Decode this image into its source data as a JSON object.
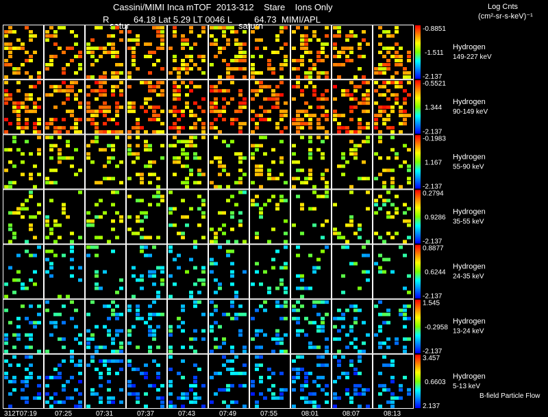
{
  "header": {
    "title": "Cassini/MIMI Inca mTOF  2013-312    Stare    Ions Only",
    "r_label": "R",
    "subtitle": "64.18 Lat 5.29 LT 0046 L         64.73  MIMI/APL",
    "saturn_tag_1": "satur",
    "saturn_tag_2": "saturn",
    "units_line1": "Log Cnts",
    "units_line2": "(cm²-sr-s-keV)⁻¹"
  },
  "footer": {
    "bfield_label": "B-field Particle Flow"
  },
  "chart_data": {
    "type": "heatmap",
    "x_tick_labels": [
      "312T07:19",
      "07:25",
      "07:31",
      "07:37",
      "07:43",
      "07:49",
      "07:55",
      "08:01",
      "08:07",
      "08:13"
    ],
    "colorbar_colors": [
      "#ff0000",
      "#ff7f00",
      "#ffff00",
      "#7fff00",
      "#00ffff",
      "#0080ff",
      "#0000ff"
    ],
    "rows": [
      {
        "species": "Hydrogen",
        "energy": "149-227 keV",
        "cb_top": "-0.8851",
        "cb_mid": "-1.511",
        "cb_bottom": "-2.137",
        "density": 0.34,
        "bias": 0.75
      },
      {
        "species": "Hydrogen",
        "energy": "90-149 keV",
        "cb_top": "-0.5521",
        "cb_mid": "1.344",
        "cb_bottom": "-2.137",
        "density": 0.42,
        "bias": 0.82
      },
      {
        "species": "Hydrogen",
        "energy": "55-90 keV",
        "cb_top": "-0.1983",
        "cb_mid": "1.167",
        "cb_bottom": "-2.137",
        "density": 0.22,
        "bias": 0.62
      },
      {
        "species": "Hydrogen",
        "energy": "35-55 keV",
        "cb_top": "0.2794",
        "cb_mid": "0.9286",
        "cb_bottom": "-2.137",
        "density": 0.17,
        "bias": 0.55
      },
      {
        "species": "Hydrogen",
        "energy": "24-35 keV",
        "cb_top": "0.8877",
        "cb_mid": "0.6244",
        "cb_bottom": "-2.137",
        "density": 0.15,
        "bias": 0.35
      },
      {
        "species": "Hydrogen",
        "energy": "13-24 keV",
        "cb_top": "1.545",
        "cb_mid": "-0.2958",
        "cb_bottom": "-2.137",
        "density": 0.25,
        "bias": 0.3
      },
      {
        "species": "Hydrogen",
        "energy": "5-13 keV",
        "cb_top": "3.457",
        "cb_mid": "0.6603",
        "cb_bottom": "2.137",
        "density": 0.26,
        "bias": 0.2
      }
    ]
  }
}
